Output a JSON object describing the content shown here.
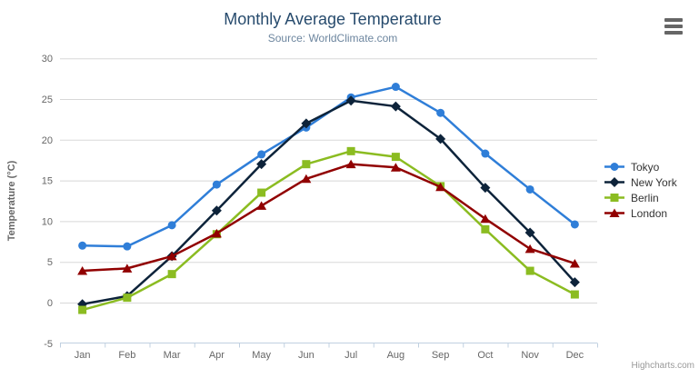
{
  "chart_data": {
    "type": "line",
    "title": "Monthly Average Temperature",
    "subtitle": "Source: WorldClimate.com",
    "xlabel": "",
    "ylabel": "Temperature (°C)",
    "ylim": [
      -5,
      30
    ],
    "ytick_interval": 5,
    "yticks": [
      -5,
      0,
      5,
      10,
      15,
      20,
      25,
      30
    ],
    "grid": true,
    "legend_position": "right-middle",
    "categories": [
      "Jan",
      "Feb",
      "Mar",
      "Apr",
      "May",
      "Jun",
      "Jul",
      "Aug",
      "Sep",
      "Oct",
      "Nov",
      "Dec"
    ],
    "series": [
      {
        "name": "Tokyo",
        "color": "#2f7ed8",
        "marker": "circle",
        "values": [
          7.0,
          6.9,
          9.5,
          14.5,
          18.2,
          21.5,
          25.2,
          26.5,
          23.3,
          18.3,
          13.9,
          9.6
        ]
      },
      {
        "name": "New York",
        "color": "#0d233a",
        "marker": "diamond",
        "values": [
          -0.2,
          0.8,
          5.7,
          11.3,
          17.0,
          22.0,
          24.8,
          24.1,
          20.1,
          14.1,
          8.6,
          2.5
        ]
      },
      {
        "name": "Berlin",
        "color": "#8bbc21",
        "marker": "square",
        "values": [
          -0.9,
          0.6,
          3.5,
          8.4,
          13.5,
          17.0,
          18.6,
          17.9,
          14.3,
          9.0,
          3.9,
          1.0
        ]
      },
      {
        "name": "London",
        "color": "#910000",
        "marker": "triangle",
        "values": [
          3.9,
          4.2,
          5.7,
          8.5,
          11.9,
          15.2,
          17.0,
          16.6,
          14.2,
          10.3,
          6.6,
          4.8
        ]
      }
    ],
    "credits": "Highcharts.com"
  },
  "colors": {
    "title": "#274b6d",
    "subtitle": "#6d869f",
    "axis_title": "#4572a7",
    "tick_label": "#666666",
    "grid": "#d8d8d8",
    "axis_line": "#c0d0e0",
    "legend_text": "#333333",
    "credits": "#999999",
    "menu_icon": "#666666"
  },
  "icons": {
    "menu": "hamburger-menu-icon"
  }
}
